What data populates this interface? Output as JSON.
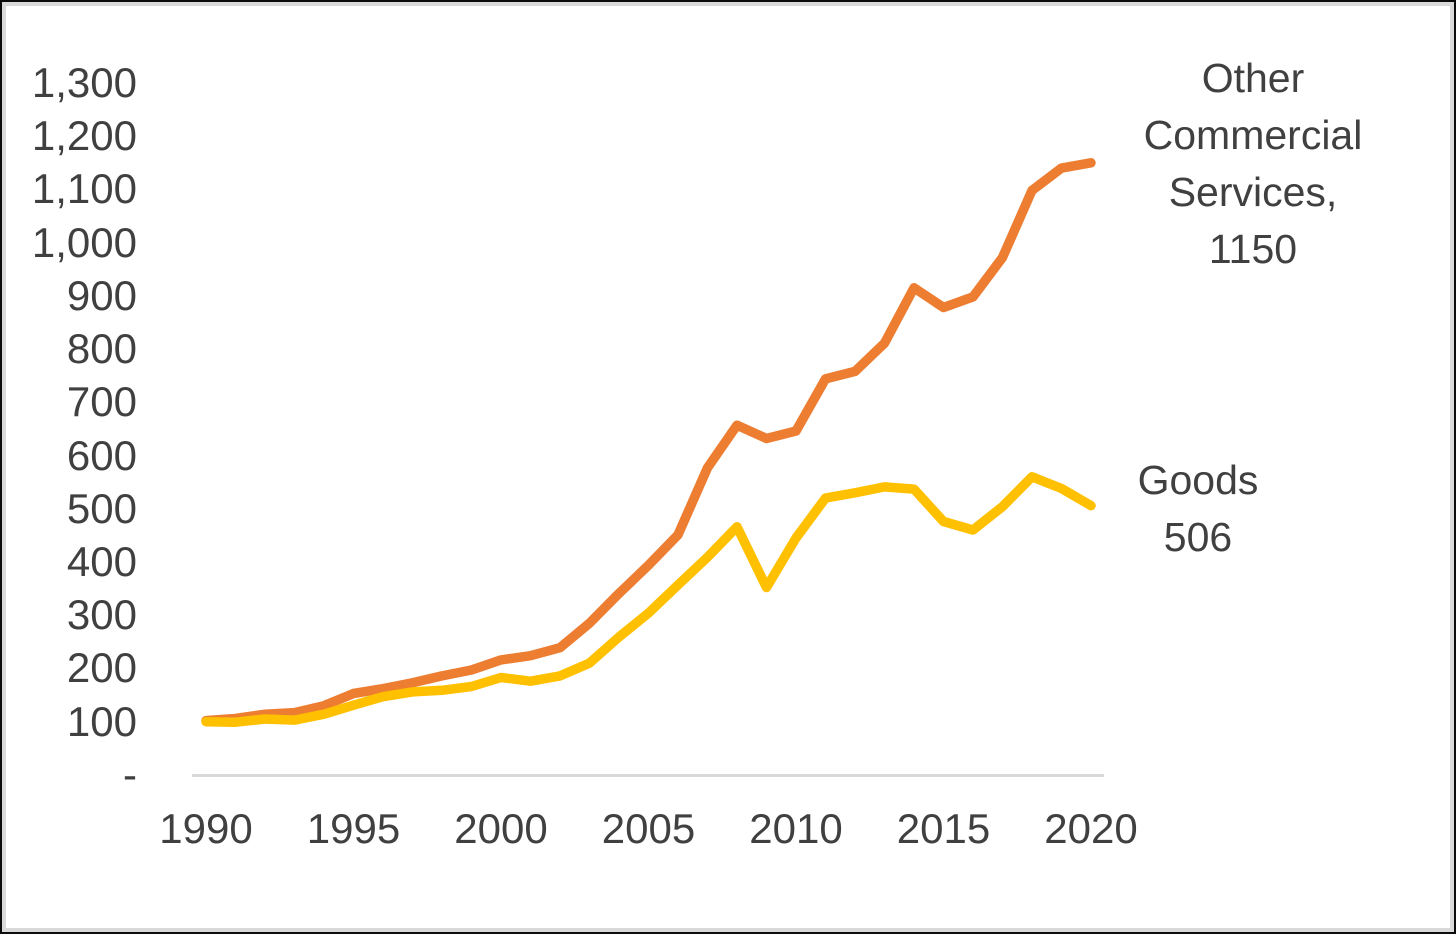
{
  "chart_data": {
    "type": "line",
    "title": "",
    "xlabel": "",
    "ylabel": "",
    "grid": "off",
    "legend_position": "end-of-line",
    "background_color": "#FFFFFF",
    "axis_line_color": "#D9D9D9",
    "text_color": "#404040",
    "x": [
      1990,
      1991,
      1992,
      1993,
      1994,
      1995,
      1996,
      1997,
      1998,
      1999,
      2000,
      2001,
      2002,
      2003,
      2004,
      2005,
      2006,
      2007,
      2008,
      2009,
      2010,
      2011,
      2012,
      2013,
      2014,
      2015,
      2016,
      2017,
      2018,
      2019,
      2020
    ],
    "series": [
      {
        "name": "Other Commercial Services",
        "color": "#ED7D31",
        "end_value": 1150,
        "end_label_lines": [
          "Other",
          "Commercial",
          "Services,",
          "1150"
        ],
        "values": [
          102,
          106,
          114,
          117,
          130,
          153,
          162,
          173,
          186,
          197,
          216,
          224,
          239,
          285,
          341,
          394,
          451,
          577,
          657,
          632,
          646,
          744,
          758,
          811,
          915,
          878,
          898,
          972,
          1098,
          1140,
          1150
        ]
      },
      {
        "name": "Goods",
        "color": "#FFC000",
        "end_value": 506,
        "end_label_lines": [
          "Goods",
          "506"
        ],
        "values": [
          100,
          99,
          105,
          103,
          114,
          131,
          147,
          156,
          159,
          166,
          183,
          176,
          186,
          210,
          259,
          304,
          357,
          409,
          466,
          352,
          445,
          520,
          530,
          541,
          537,
          476,
          460,
          504,
          560,
          538,
          506
        ]
      }
    ],
    "y_axis": {
      "min": 0,
      "max": 1300,
      "tick_step": 100,
      "tick_labels": [
        "1,300",
        "1,200",
        "1,100",
        "1,000",
        "900",
        "800",
        "700",
        "600",
        "500",
        "400",
        "300",
        "200",
        "100",
        "-"
      ],
      "tick_values": [
        1300,
        1200,
        1100,
        1000,
        900,
        800,
        700,
        600,
        500,
        400,
        300,
        200,
        100,
        0
      ]
    },
    "x_axis": {
      "tick_labels": [
        "1990",
        "1995",
        "2000",
        "2005",
        "2010",
        "2015",
        "2020"
      ],
      "tick_values": [
        1990,
        1995,
        2000,
        2005,
        2010,
        2015,
        2020
      ]
    }
  }
}
